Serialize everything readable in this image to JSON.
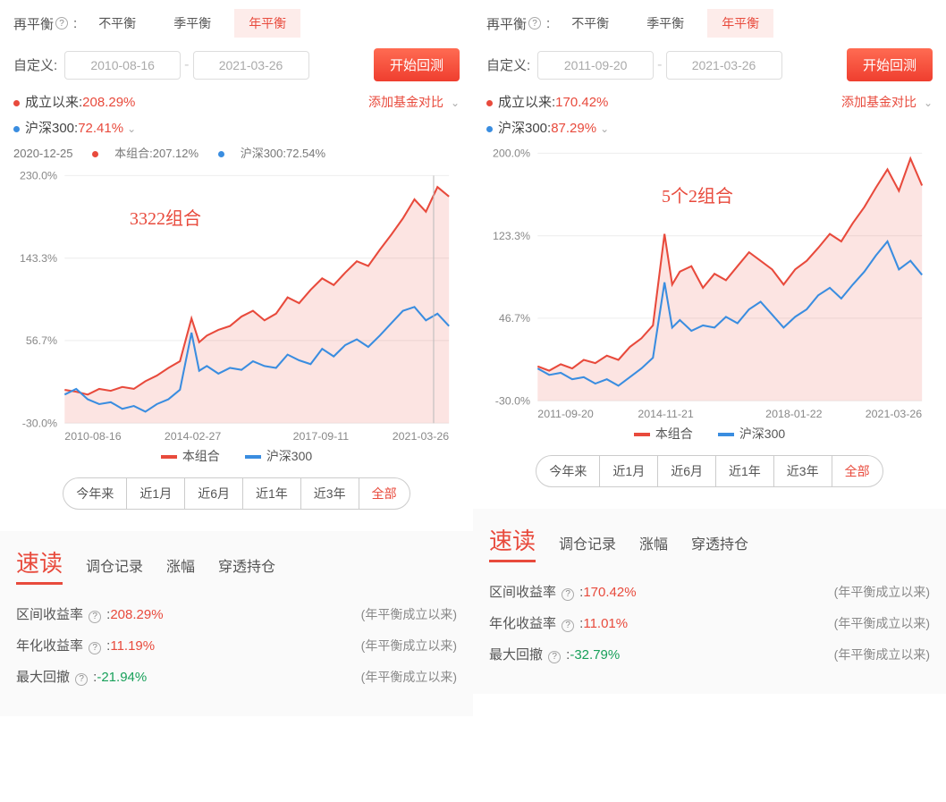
{
  "colors": {
    "red": "#e84a3c",
    "blue": "#3a8de0",
    "green": "#18a05a",
    "grid": "#eeeeee",
    "axis": "#cccccc",
    "text": "#555555",
    "bg": "#ffffff"
  },
  "rebalance": {
    "label": "再平衡",
    "options": [
      "不平衡",
      "季平衡",
      "年平衡"
    ],
    "active_index": 2
  },
  "custom": {
    "label": "自定义:"
  },
  "start_backtest_label": "开始回测",
  "add_compare_label": "添加基金对比",
  "since_inception_label": "成立以来:",
  "csi300_label": "沪深300:",
  "time_pills": {
    "items": [
      "今年来",
      "近1月",
      "近6月",
      "近1年",
      "近3年",
      "全部"
    ],
    "active_index": 5
  },
  "legend": {
    "series1": "本组合",
    "series2": "沪深300"
  },
  "bottom_tabs": {
    "main": "速读",
    "subs": [
      "调仓记录",
      "涨幅",
      "穿透持仓"
    ]
  },
  "metrics": {
    "range_return_label": "区间收益率",
    "annual_return_label": "年化收益率",
    "max_drawdown_label": "最大回撤",
    "note": "(年平衡成立以来)"
  },
  "panels": [
    {
      "date_start": "2010-08-16",
      "date_end": "2021-03-26",
      "since_inception_val": "208.29%",
      "csi300_val": "72.41%",
      "overlay_title": "3322组合",
      "hover": {
        "date": "2020-12-25",
        "portfolio": "207.12%",
        "csi": "72.54%"
      },
      "chart": {
        "type": "line",
        "background_color": "#ffffff",
        "grid_color": "#eeeeee",
        "ylim": [
          -30.0,
          230.0
        ],
        "yticks": [
          -30.0,
          56.7,
          143.3,
          230.0
        ],
        "ytick_labels": [
          "-30.0%",
          "56.7%",
          "143.3%",
          "230.0%"
        ],
        "xtick_labels": [
          "2010-08-16",
          "2014-02-27",
          "2017-09-11",
          "2021-03-26"
        ],
        "line_width": 2,
        "area_fill_opacity": 0.15,
        "vertical_cursor_x": 0.96,
        "series": [
          {
            "name": "本组合",
            "color": "#e84a3c",
            "fill": true,
            "points": [
              [
                0.0,
                5
              ],
              [
                0.03,
                3
              ],
              [
                0.06,
                0
              ],
              [
                0.09,
                6
              ],
              [
                0.12,
                4
              ],
              [
                0.15,
                8
              ],
              [
                0.18,
                6
              ],
              [
                0.21,
                14
              ],
              [
                0.24,
                20
              ],
              [
                0.27,
                28
              ],
              [
                0.3,
                35
              ],
              [
                0.33,
                80
              ],
              [
                0.35,
                55
              ],
              [
                0.37,
                62
              ],
              [
                0.4,
                68
              ],
              [
                0.43,
                72
              ],
              [
                0.46,
                82
              ],
              [
                0.49,
                88
              ],
              [
                0.52,
                78
              ],
              [
                0.55,
                85
              ],
              [
                0.58,
                102
              ],
              [
                0.61,
                96
              ],
              [
                0.64,
                110
              ],
              [
                0.67,
                122
              ],
              [
                0.7,
                115
              ],
              [
                0.73,
                128
              ],
              [
                0.76,
                140
              ],
              [
                0.79,
                135
              ],
              [
                0.82,
                152
              ],
              [
                0.85,
                168
              ],
              [
                0.88,
                185
              ],
              [
                0.91,
                205
              ],
              [
                0.94,
                192
              ],
              [
                0.97,
                218
              ],
              [
                1.0,
                208
              ]
            ]
          },
          {
            "name": "沪深300",
            "color": "#3a8de0",
            "fill": false,
            "points": [
              [
                0.0,
                0
              ],
              [
                0.03,
                6
              ],
              [
                0.06,
                -5
              ],
              [
                0.09,
                -10
              ],
              [
                0.12,
                -8
              ],
              [
                0.15,
                -15
              ],
              [
                0.18,
                -12
              ],
              [
                0.21,
                -18
              ],
              [
                0.24,
                -10
              ],
              [
                0.27,
                -5
              ],
              [
                0.3,
                5
              ],
              [
                0.33,
                65
              ],
              [
                0.35,
                25
              ],
              [
                0.37,
                30
              ],
              [
                0.4,
                22
              ],
              [
                0.43,
                28
              ],
              [
                0.46,
                26
              ],
              [
                0.49,
                35
              ],
              [
                0.52,
                30
              ],
              [
                0.55,
                28
              ],
              [
                0.58,
                42
              ],
              [
                0.61,
                36
              ],
              [
                0.64,
                32
              ],
              [
                0.67,
                48
              ],
              [
                0.7,
                40
              ],
              [
                0.73,
                52
              ],
              [
                0.76,
                58
              ],
              [
                0.79,
                50
              ],
              [
                0.82,
                62
              ],
              [
                0.85,
                75
              ],
              [
                0.88,
                88
              ],
              [
                0.91,
                92
              ],
              [
                0.94,
                78
              ],
              [
                0.97,
                85
              ],
              [
                1.0,
                72
              ]
            ]
          }
        ]
      },
      "range_return_val": "208.29%",
      "annual_return_val": "11.19%",
      "max_drawdown_val": "-21.94%"
    },
    {
      "date_start": "2011-09-20",
      "date_end": "2021-03-26",
      "since_inception_val": "170.42%",
      "csi300_val": "87.29%",
      "overlay_title": "5个2组合",
      "hover": null,
      "chart": {
        "type": "line",
        "background_color": "#ffffff",
        "grid_color": "#eeeeee",
        "ylim": [
          -30.0,
          200.0
        ],
        "yticks": [
          -30.0,
          46.7,
          123.3,
          200.0
        ],
        "ytick_labels": [
          "-30.0%",
          "46.7%",
          "123.3%",
          "200.0%"
        ],
        "xtick_labels": [
          "2011-09-20",
          "2014-11-21",
          "2018-01-22",
          "2021-03-26"
        ],
        "line_width": 2,
        "area_fill_opacity": 0.15,
        "series": [
          {
            "name": "本组合",
            "color": "#e84a3c",
            "fill": true,
            "points": [
              [
                0.0,
                2
              ],
              [
                0.03,
                -2
              ],
              [
                0.06,
                4
              ],
              [
                0.09,
                0
              ],
              [
                0.12,
                8
              ],
              [
                0.15,
                5
              ],
              [
                0.18,
                12
              ],
              [
                0.21,
                8
              ],
              [
                0.24,
                20
              ],
              [
                0.27,
                28
              ],
              [
                0.3,
                40
              ],
              [
                0.33,
                125
              ],
              [
                0.35,
                78
              ],
              [
                0.37,
                90
              ],
              [
                0.4,
                95
              ],
              [
                0.43,
                75
              ],
              [
                0.46,
                88
              ],
              [
                0.49,
                82
              ],
              [
                0.52,
                95
              ],
              [
                0.55,
                108
              ],
              [
                0.58,
                100
              ],
              [
                0.61,
                92
              ],
              [
                0.64,
                78
              ],
              [
                0.67,
                92
              ],
              [
                0.7,
                100
              ],
              [
                0.73,
                112
              ],
              [
                0.76,
                125
              ],
              [
                0.79,
                118
              ],
              [
                0.82,
                135
              ],
              [
                0.85,
                150
              ],
              [
                0.88,
                168
              ],
              [
                0.91,
                185
              ],
              [
                0.94,
                165
              ],
              [
                0.97,
                195
              ],
              [
                1.0,
                170
              ]
            ]
          },
          {
            "name": "沪深300",
            "color": "#3a8de0",
            "fill": false,
            "points": [
              [
                0.0,
                0
              ],
              [
                0.03,
                -6
              ],
              [
                0.06,
                -4
              ],
              [
                0.09,
                -10
              ],
              [
                0.12,
                -8
              ],
              [
                0.15,
                -14
              ],
              [
                0.18,
                -10
              ],
              [
                0.21,
                -16
              ],
              [
                0.24,
                -8
              ],
              [
                0.27,
                0
              ],
              [
                0.3,
                10
              ],
              [
                0.33,
                80
              ],
              [
                0.35,
                38
              ],
              [
                0.37,
                45
              ],
              [
                0.4,
                35
              ],
              [
                0.43,
                40
              ],
              [
                0.46,
                38
              ],
              [
                0.49,
                48
              ],
              [
                0.52,
                42
              ],
              [
                0.55,
                55
              ],
              [
                0.58,
                62
              ],
              [
                0.61,
                50
              ],
              [
                0.64,
                38
              ],
              [
                0.67,
                48
              ],
              [
                0.7,
                55
              ],
              [
                0.73,
                68
              ],
              [
                0.76,
                75
              ],
              [
                0.79,
                65
              ],
              [
                0.82,
                78
              ],
              [
                0.85,
                90
              ],
              [
                0.88,
                105
              ],
              [
                0.91,
                118
              ],
              [
                0.94,
                92
              ],
              [
                0.97,
                100
              ],
              [
                1.0,
                87
              ]
            ]
          }
        ]
      },
      "range_return_val": "170.42%",
      "annual_return_val": "11.01%",
      "max_drawdown_val": "-32.79%"
    }
  ]
}
